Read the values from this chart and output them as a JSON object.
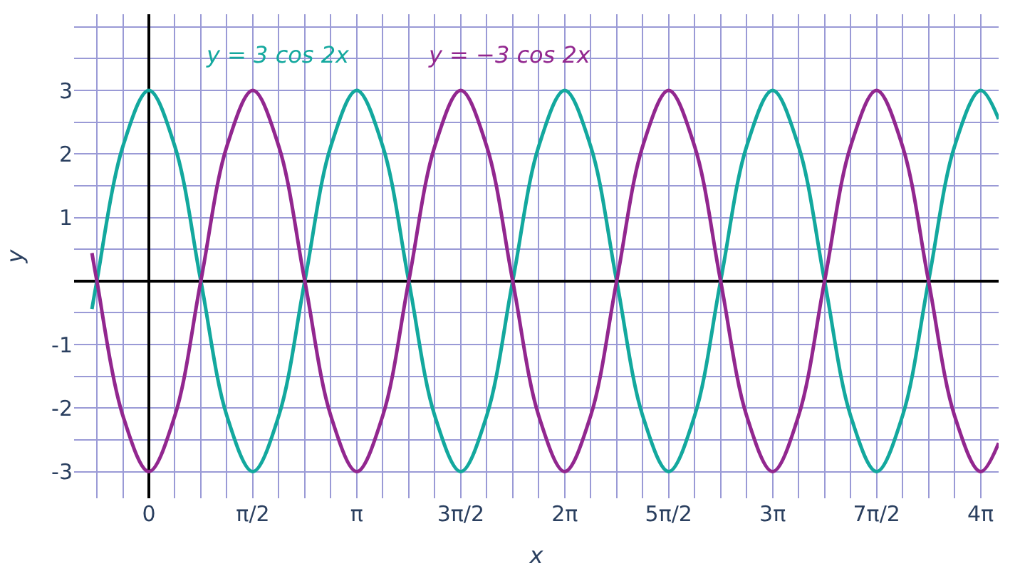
{
  "chart_data": {
    "type": "line",
    "xlabel": "x",
    "ylabel": "y",
    "xlim": [
      -1.13,
      12.84
    ],
    "ylim": [
      -3.42,
      4.2
    ],
    "xticks": [
      {
        "value": 0,
        "label": "0"
      },
      {
        "value": 1.5708,
        "label": "π/2"
      },
      {
        "value": 3.1416,
        "label": "π"
      },
      {
        "value": 4.7124,
        "label": "3π/2"
      },
      {
        "value": 6.2832,
        "label": "2π"
      },
      {
        "value": 7.854,
        "label": "5π/2"
      },
      {
        "value": 9.4248,
        "label": "3π"
      },
      {
        "value": 10.9956,
        "label": "7π/2"
      },
      {
        "value": 12.5664,
        "label": "4π"
      }
    ],
    "yticks": [
      -3,
      -2,
      -1,
      1,
      2,
      3
    ],
    "grid": true,
    "legend": false,
    "marker": "none",
    "line_style": "solid",
    "x": [
      -0.86,
      -0.7854,
      -0.3927,
      0,
      0.3927,
      0.7854,
      1.1781,
      1.5708,
      1.9635,
      2.3562,
      2.7489,
      3.1416,
      3.5343,
      3.927,
      4.3197,
      4.7124,
      5.1051,
      5.4978,
      5.8905,
      6.2832,
      6.6759,
      7.0686,
      7.4613,
      7.854,
      8.2467,
      8.6394,
      9.0321,
      9.4248,
      9.8175,
      10.2102,
      10.6029,
      10.9956,
      11.3883,
      11.781,
      12.1737,
      12.5664,
      12.84
    ],
    "series": [
      {
        "name": "y = 3 cos 2x",
        "color": "#13a89e",
        "values": [
          -0.44,
          0,
          2.12,
          3,
          2.12,
          0,
          -2.12,
          -3,
          -2.12,
          0,
          2.12,
          3,
          2.12,
          0,
          -2.12,
          -3,
          -2.12,
          0,
          2.12,
          3,
          2.12,
          0,
          -2.12,
          -3,
          -2.12,
          0,
          2.12,
          3,
          2.12,
          0,
          -2.12,
          -3,
          -2.12,
          0,
          2.12,
          3,
          2.55
        ]
      },
      {
        "name": "y = −3 cos 2x",
        "color": "#92278f",
        "values": [
          0.44,
          0,
          -2.12,
          -3,
          -2.12,
          0,
          2.12,
          3,
          2.12,
          0,
          -2.12,
          -3,
          -2.12,
          0,
          2.12,
          3,
          2.12,
          0,
          -2.12,
          -3,
          -2.12,
          0,
          2.12,
          3,
          2.12,
          0,
          -2.12,
          -3,
          -2.12,
          0,
          2.12,
          3,
          2.12,
          0,
          -2.12,
          -3,
          -2.55
        ]
      }
    ]
  }
}
